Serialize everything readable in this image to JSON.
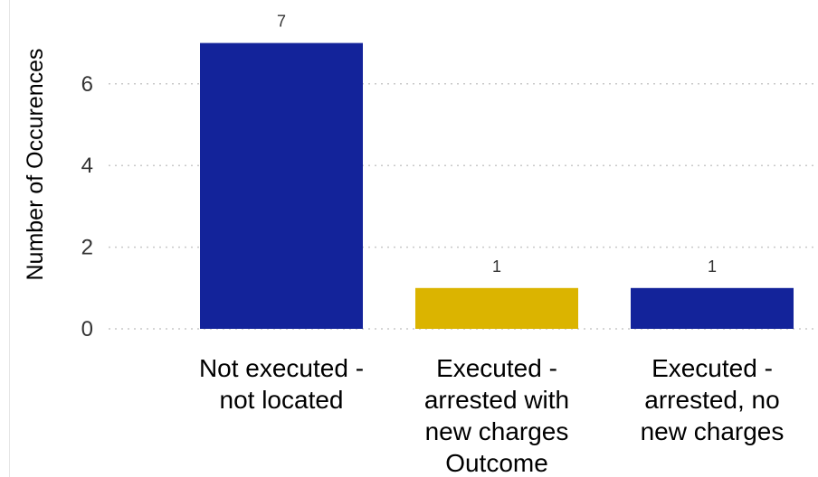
{
  "chart_data": {
    "type": "bar",
    "categories": [
      [
        "Not executed -",
        "not located"
      ],
      [
        "Executed -",
        "arrested with",
        "new charges"
      ],
      [
        "Executed -",
        "arrested, no",
        "new charges"
      ]
    ],
    "values": [
      7,
      1,
      1
    ],
    "data_labels": [
      "7",
      "1",
      "1"
    ],
    "bar_colors": [
      "#13239a",
      "#dbb400",
      "#13239a"
    ],
    "ylabel": "Number of Occurences",
    "xlabel": "Outcome",
    "ylim": [
      0,
      7.6
    ],
    "yticks": [
      0,
      2,
      4,
      6
    ],
    "ytick_labels": [
      "0",
      "2",
      "4",
      "6"
    ],
    "grid": "horizontal dotted",
    "legend": "none"
  }
}
